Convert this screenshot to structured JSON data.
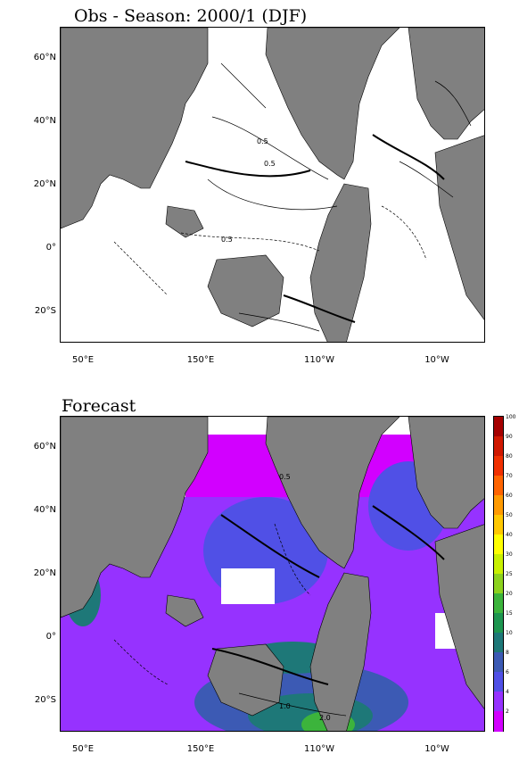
{
  "panels": {
    "obs": {
      "title": "Obs - Season: 2000/1 (DJF)"
    },
    "forecast": {
      "title": "Forecast"
    }
  },
  "axes": {
    "lat_labels": [
      "60°N",
      "40°N",
      "20°N",
      "0°",
      "20°S"
    ],
    "lon_labels": [
      "50°E",
      "150°E",
      "110°W",
      "10°W"
    ]
  },
  "contour_labels": {
    "obs": [
      "0.5",
      "0.5",
      "0.5"
    ],
    "forecast": [
      "0.5",
      "1.0",
      "2.0"
    ]
  },
  "colorbar": {
    "labels": [
      "100",
      "90",
      "80",
      "70",
      "60",
      "50",
      "40",
      "30",
      "25",
      "20",
      "15",
      "10",
      "8",
      "6",
      "4",
      "2"
    ],
    "colors": [
      "#a50000",
      "#d01800",
      "#f03000",
      "#ff6400",
      "#ff9a00",
      "#ffc800",
      "#ffff00",
      "#c8f000",
      "#8cd21e",
      "#3cb43c",
      "#1e9650",
      "#1e7878",
      "#3c5ab4",
      "#5050e6",
      "#9632ff",
      "#d200ff"
    ]
  },
  "colors": {
    "land": "#808080",
    "ocean": "#ffffff"
  }
}
